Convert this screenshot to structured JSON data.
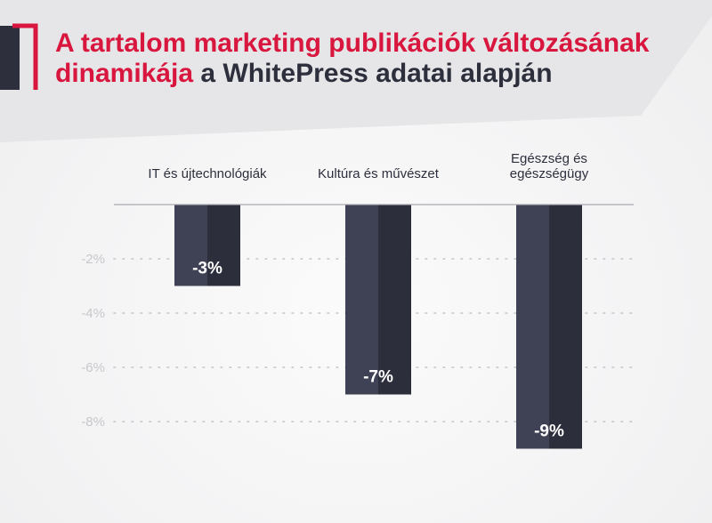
{
  "title": {
    "highlight": "A tartalom marketing publikációk változásának dinamikája",
    "rest": " a WhitePress adatai alapján"
  },
  "colors": {
    "accent": "#d8163e",
    "dark": "#2d2f3d",
    "bar_left": "#3f4155",
    "bar_right": "#2d2e3b",
    "band": "#e6e6e8"
  },
  "chart_data": {
    "type": "bar",
    "categories": [
      [
        "IT és újtechnológiák"
      ],
      [
        "Kultúra és művészet"
      ],
      [
        "Egészség és",
        "egészségügy"
      ]
    ],
    "values": [
      -3,
      -7,
      -9
    ],
    "value_labels": [
      "-3%",
      "-7%",
      "-9%"
    ],
    "y_ticks": [
      -2,
      -4,
      -6,
      -8
    ],
    "y_tick_labels": [
      "-2%",
      "-4%",
      "-6%",
      "-8%"
    ],
    "ylim": [
      -9,
      0
    ],
    "grid": "dotted horizontal",
    "legend": "none"
  }
}
